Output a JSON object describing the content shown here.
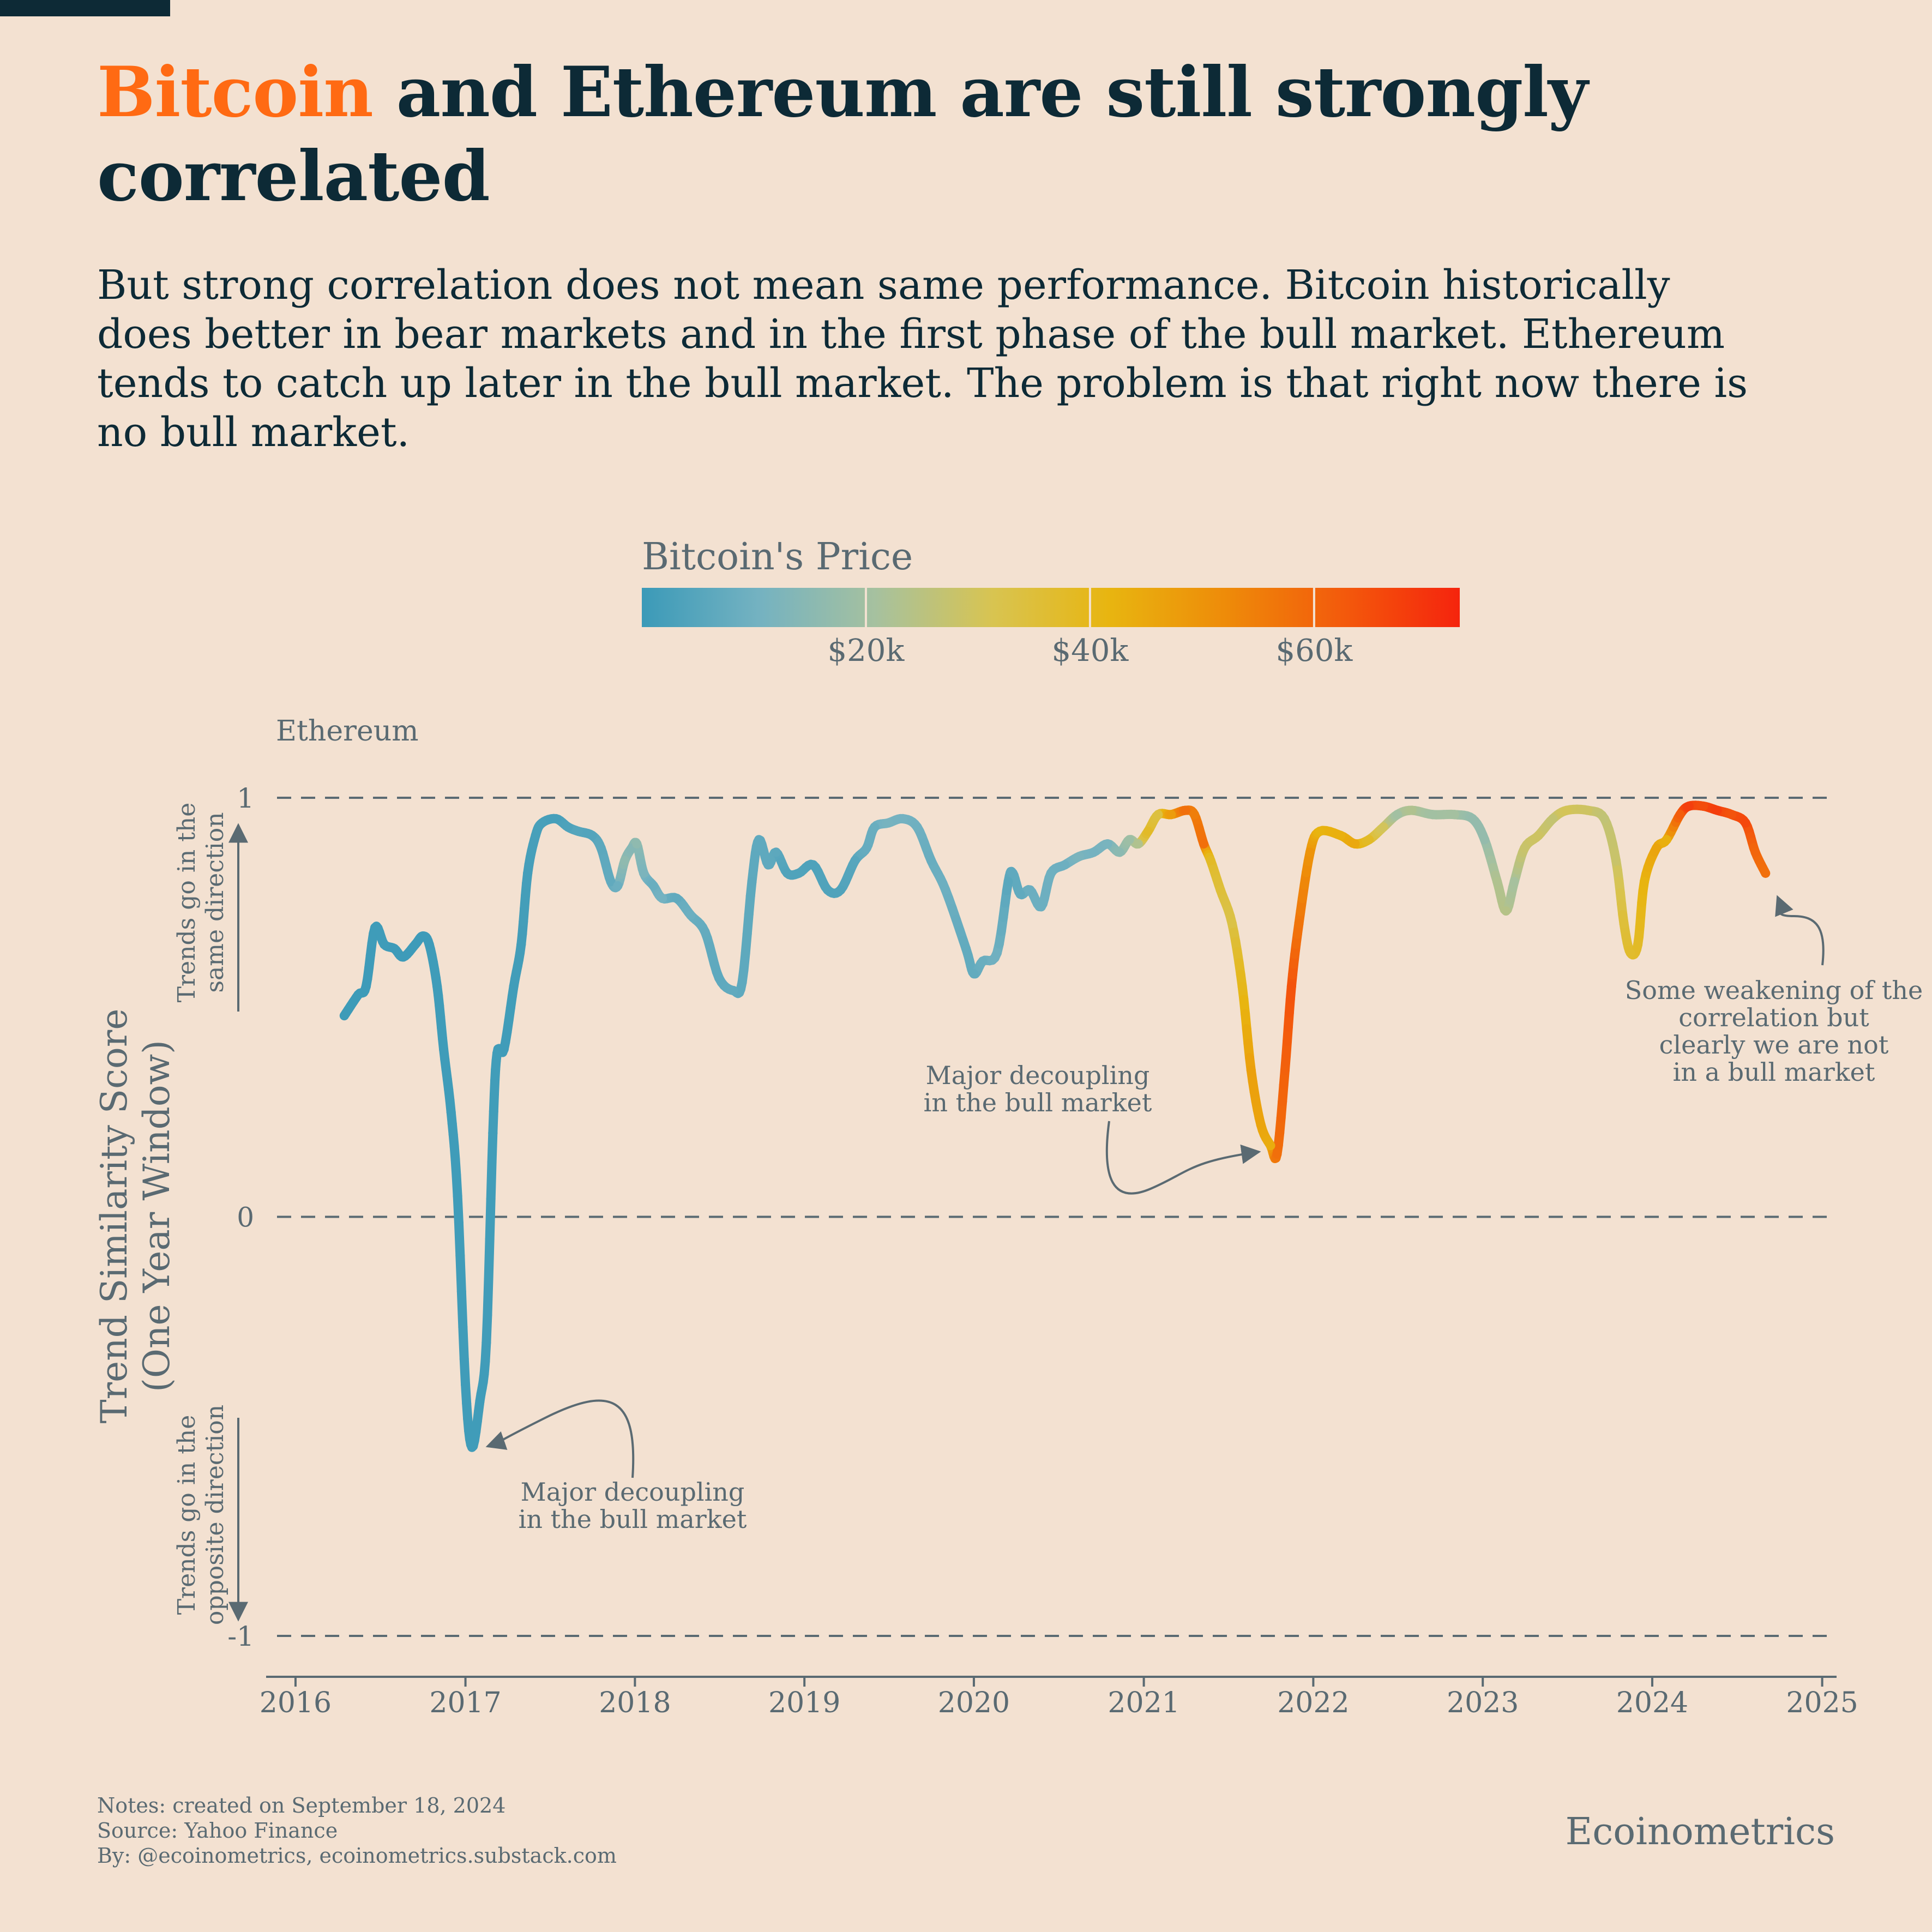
{
  "header": {
    "title_accent": "Bitcoin",
    "title_rest": " and Ethereum are still strongly correlated",
    "subtitle": "But strong correlation does not mean same performance. Bitcoin historically does better in bear markets and in the first phase of the bull market. Ethereum tends to catch up later in the bull market. The problem is that right now there is no bull market."
  },
  "colorbar": {
    "title": "Bitcoin's Price",
    "ticks": [
      {
        "value": 20000,
        "label": "$20k"
      },
      {
        "value": 40000,
        "label": "$40k"
      },
      {
        "value": 60000,
        "label": "$60k"
      }
    ],
    "range": [
      0,
      73000
    ],
    "colors": [
      "#3B9AB8",
      "#74B2C1",
      "#A6C19F",
      "#D8C451",
      "#E8B510",
      "#EE8B09",
      "#F35A0C",
      "#F5240D"
    ]
  },
  "chart_data": {
    "type": "line",
    "series_label": "Ethereum",
    "ylabel": "Trend Similarity Score (One Year Window)",
    "ylim": [
      -1,
      1
    ],
    "xlim": [
      "2015-11-01",
      "2025-02-01"
    ],
    "yticks": [
      {
        "value": 1,
        "label": "1"
      },
      {
        "value": 0,
        "label": "0"
      },
      {
        "value": -1,
        "label": "-1"
      }
    ],
    "xticks": [
      {
        "value": "2016-01-01",
        "label": "2016"
      },
      {
        "value": "2017-01-01",
        "label": "2017"
      },
      {
        "value": "2018-01-01",
        "label": "2018"
      },
      {
        "value": "2019-01-01",
        "label": "2019"
      },
      {
        "value": "2020-01-01",
        "label": "2020"
      },
      {
        "value": "2021-01-01",
        "label": "2021"
      },
      {
        "value": "2022-01-01",
        "label": "2022"
      },
      {
        "value": "2023-01-01",
        "label": "2023"
      },
      {
        "value": "2024-01-01",
        "label": "2024"
      },
      {
        "value": "2025-01-01",
        "label": "2025"
      }
    ],
    "grid": "dashed horizontal at y ticks",
    "axis_notes": {
      "up": "Trends go in the same direction",
      "down": "Trends go in the opposite direction"
    },
    "points": [
      {
        "x": "2016-04-15",
        "y": 0.48,
        "p": 420
      },
      {
        "x": "2016-05-15",
        "y": 0.53,
        "p": 450
      },
      {
        "x": "2016-06-01",
        "y": 0.55,
        "p": 580
      },
      {
        "x": "2016-06-20",
        "y": 0.69,
        "p": 700
      },
      {
        "x": "2016-07-10",
        "y": 0.65,
        "p": 660
      },
      {
        "x": "2016-08-01",
        "y": 0.64,
        "p": 600
      },
      {
        "x": "2016-08-20",
        "y": 0.62,
        "p": 580
      },
      {
        "x": "2016-09-15",
        "y": 0.65,
        "p": 610
      },
      {
        "x": "2016-10-01",
        "y": 0.67,
        "p": 615
      },
      {
        "x": "2016-10-15",
        "y": 0.65,
        "p": 640
      },
      {
        "x": "2016-11-01",
        "y": 0.55,
        "p": 730
      },
      {
        "x": "2016-11-15",
        "y": 0.4,
        "p": 720
      },
      {
        "x": "2016-12-01",
        "y": 0.25,
        "p": 750
      },
      {
        "x": "2016-12-15",
        "y": 0.05,
        "p": 780
      },
      {
        "x": "2017-01-01",
        "y": -0.4,
        "p": 970
      },
      {
        "x": "2017-01-15",
        "y": -0.55,
        "p": 830
      },
      {
        "x": "2017-02-01",
        "y": -0.44,
        "p": 970
      },
      {
        "x": "2017-02-15",
        "y": -0.3,
        "p": 1010
      },
      {
        "x": "2017-03-01",
        "y": 0.2,
        "p": 1200
      },
      {
        "x": "2017-03-10",
        "y": 0.39,
        "p": 1150
      },
      {
        "x": "2017-03-25",
        "y": 0.4,
        "p": 960
      },
      {
        "x": "2017-04-15",
        "y": 0.55,
        "p": 1180
      },
      {
        "x": "2017-05-01",
        "y": 0.65,
        "p": 1400
      },
      {
        "x": "2017-05-15",
        "y": 0.82,
        "p": 1800
      },
      {
        "x": "2017-06-01",
        "y": 0.91,
        "p": 2400
      },
      {
        "x": "2017-06-15",
        "y": 0.94,
        "p": 2500
      },
      {
        "x": "2017-07-15",
        "y": 0.95,
        "p": 2000
      },
      {
        "x": "2017-08-10",
        "y": 0.93,
        "p": 3400
      },
      {
        "x": "2017-09-01",
        "y": 0.92,
        "p": 4700
      },
      {
        "x": "2017-10-01",
        "y": 0.91,
        "p": 4400
      },
      {
        "x": "2017-10-20",
        "y": 0.88,
        "p": 6000
      },
      {
        "x": "2017-11-10",
        "y": 0.8,
        "p": 7000
      },
      {
        "x": "2017-11-25",
        "y": 0.79,
        "p": 9000
      },
      {
        "x": "2017-12-10",
        "y": 0.85,
        "p": 16000
      },
      {
        "x": "2017-12-25",
        "y": 0.88,
        "p": 14000
      },
      {
        "x": "2018-01-05",
        "y": 0.89,
        "p": 16000
      },
      {
        "x": "2018-01-20",
        "y": 0.82,
        "p": 12000
      },
      {
        "x": "2018-02-10",
        "y": 0.79,
        "p": 8500
      },
      {
        "x": "2018-03-01",
        "y": 0.76,
        "p": 10500
      },
      {
        "x": "2018-04-01",
        "y": 0.76,
        "p": 7000
      },
      {
        "x": "2018-05-01",
        "y": 0.72,
        "p": 9000
      },
      {
        "x": "2018-06-01",
        "y": 0.68,
        "p": 7500
      },
      {
        "x": "2018-07-01",
        "y": 0.57,
        "p": 6400
      },
      {
        "x": "2018-08-01",
        "y": 0.54,
        "p": 7000
      },
      {
        "x": "2018-08-20",
        "y": 0.56,
        "p": 6400
      },
      {
        "x": "2018-09-10",
        "y": 0.8,
        "p": 6300
      },
      {
        "x": "2018-09-25",
        "y": 0.9,
        "p": 6600
      },
      {
        "x": "2018-10-15",
        "y": 0.84,
        "p": 6500
      },
      {
        "x": "2018-11-01",
        "y": 0.87,
        "p": 6300
      },
      {
        "x": "2018-11-25",
        "y": 0.82,
        "p": 4000
      },
      {
        "x": "2018-12-20",
        "y": 0.82,
        "p": 3900
      },
      {
        "x": "2019-01-20",
        "y": 0.84,
        "p": 3600
      },
      {
        "x": "2019-02-20",
        "y": 0.78,
        "p": 3900
      },
      {
        "x": "2019-03-20",
        "y": 0.78,
        "p": 4000
      },
      {
        "x": "2019-04-20",
        "y": 0.85,
        "p": 5300
      },
      {
        "x": "2019-05-15",
        "y": 0.88,
        "p": 8000
      },
      {
        "x": "2019-06-01",
        "y": 0.93,
        "p": 8500
      },
      {
        "x": "2019-07-01",
        "y": 0.94,
        "p": 11000
      },
      {
        "x": "2019-08-01",
        "y": 0.95,
        "p": 10500
      },
      {
        "x": "2019-09-01",
        "y": 0.93,
        "p": 9600
      },
      {
        "x": "2019-10-01",
        "y": 0.85,
        "p": 8300
      },
      {
        "x": "2019-11-01",
        "y": 0.78,
        "p": 9200
      },
      {
        "x": "2019-12-15",
        "y": 0.64,
        "p": 7200
      },
      {
        "x": "2020-01-01",
        "y": 0.58,
        "p": 7200
      },
      {
        "x": "2020-01-20",
        "y": 0.61,
        "p": 8600
      },
      {
        "x": "2020-02-20",
        "y": 0.63,
        "p": 9700
      },
      {
        "x": "2020-03-15",
        "y": 0.8,
        "p": 5500
      },
      {
        "x": "2020-03-25",
        "y": 0.82,
        "p": 6700
      },
      {
        "x": "2020-04-10",
        "y": 0.77,
        "p": 6900
      },
      {
        "x": "2020-05-01",
        "y": 0.78,
        "p": 8800
      },
      {
        "x": "2020-05-25",
        "y": 0.74,
        "p": 9000
      },
      {
        "x": "2020-06-15",
        "y": 0.82,
        "p": 9400
      },
      {
        "x": "2020-07-15",
        "y": 0.84,
        "p": 9200
      },
      {
        "x": "2020-08-15",
        "y": 0.86,
        "p": 11800
      },
      {
        "x": "2020-09-15",
        "y": 0.87,
        "p": 10700
      },
      {
        "x": "2020-10-15",
        "y": 0.89,
        "p": 11500
      },
      {
        "x": "2020-11-10",
        "y": 0.87,
        "p": 15300
      },
      {
        "x": "2020-12-01",
        "y": 0.9,
        "p": 19000
      },
      {
        "x": "2020-12-20",
        "y": 0.89,
        "p": 23000
      },
      {
        "x": "2021-01-10",
        "y": 0.92,
        "p": 38000
      },
      {
        "x": "2021-02-01",
        "y": 0.96,
        "p": 34000
      },
      {
        "x": "2021-03-01",
        "y": 0.96,
        "p": 48000
      },
      {
        "x": "2021-04-01",
        "y": 0.97,
        "p": 58000
      },
      {
        "x": "2021-04-20",
        "y": 0.96,
        "p": 55000
      },
      {
        "x": "2021-05-10",
        "y": 0.89,
        "p": 58000
      },
      {
        "x": "2021-05-25",
        "y": 0.85,
        "p": 38000
      },
      {
        "x": "2021-06-15",
        "y": 0.78,
        "p": 35000
      },
      {
        "x": "2021-07-10",
        "y": 0.7,
        "p": 33000
      },
      {
        "x": "2021-08-01",
        "y": 0.55,
        "p": 40000
      },
      {
        "x": "2021-08-20",
        "y": 0.35,
        "p": 47000
      },
      {
        "x": "2021-09-10",
        "y": 0.22,
        "p": 46000
      },
      {
        "x": "2021-10-01",
        "y": 0.17,
        "p": 44000
      },
      {
        "x": "2021-10-15",
        "y": 0.15,
        "p": 58000
      },
      {
        "x": "2021-11-01",
        "y": 0.35,
        "p": 61000
      },
      {
        "x": "2021-11-15",
        "y": 0.55,
        "p": 64000
      },
      {
        "x": "2021-12-01",
        "y": 0.7,
        "p": 57000
      },
      {
        "x": "2021-12-25",
        "y": 0.87,
        "p": 50000
      },
      {
        "x": "2022-01-15",
        "y": 0.92,
        "p": 42000
      },
      {
        "x": "2022-03-01",
        "y": 0.91,
        "p": 43000
      },
      {
        "x": "2022-04-01",
        "y": 0.89,
        "p": 45000
      },
      {
        "x": "2022-05-01",
        "y": 0.9,
        "p": 38000
      },
      {
        "x": "2022-06-01",
        "y": 0.93,
        "p": 30000
      },
      {
        "x": "2022-07-01",
        "y": 0.96,
        "p": 20000
      },
      {
        "x": "2022-08-01",
        "y": 0.97,
        "p": 23000
      },
      {
        "x": "2022-09-15",
        "y": 0.96,
        "p": 20000
      },
      {
        "x": "2022-11-01",
        "y": 0.96,
        "p": 20500
      },
      {
        "x": "2022-12-10",
        "y": 0.95,
        "p": 17000
      },
      {
        "x": "2023-01-05",
        "y": 0.9,
        "p": 17000
      },
      {
        "x": "2023-02-01",
        "y": 0.8,
        "p": 23000
      },
      {
        "x": "2023-02-20",
        "y": 0.73,
        "p": 24000
      },
      {
        "x": "2023-03-10",
        "y": 0.8,
        "p": 21000
      },
      {
        "x": "2023-04-01",
        "y": 0.88,
        "p": 28000
      },
      {
        "x": "2023-05-01",
        "y": 0.91,
        "p": 29000
      },
      {
        "x": "2023-06-01",
        "y": 0.95,
        "p": 27000
      },
      {
        "x": "2023-07-01",
        "y": 0.97,
        "p": 30500
      },
      {
        "x": "2023-08-15",
        "y": 0.97,
        "p": 29000
      },
      {
        "x": "2023-09-20",
        "y": 0.95,
        "p": 26500
      },
      {
        "x": "2023-10-15",
        "y": 0.85,
        "p": 28000
      },
      {
        "x": "2023-11-01",
        "y": 0.7,
        "p": 35000
      },
      {
        "x": "2023-11-15",
        "y": 0.63,
        "p": 37000
      },
      {
        "x": "2023-12-01",
        "y": 0.65,
        "p": 38000
      },
      {
        "x": "2023-12-15",
        "y": 0.8,
        "p": 42000
      },
      {
        "x": "2024-01-10",
        "y": 0.88,
        "p": 46000
      },
      {
        "x": "2024-02-01",
        "y": 0.9,
        "p": 43000
      },
      {
        "x": "2024-03-01",
        "y": 0.96,
        "p": 62000
      },
      {
        "x": "2024-03-20",
        "y": 0.98,
        "p": 68000
      },
      {
        "x": "2024-04-20",
        "y": 0.98,
        "p": 65000
      },
      {
        "x": "2024-05-20",
        "y": 0.97,
        "p": 68000
      },
      {
        "x": "2024-06-20",
        "y": 0.96,
        "p": 64000
      },
      {
        "x": "2024-07-20",
        "y": 0.94,
        "p": 66000
      },
      {
        "x": "2024-08-10",
        "y": 0.87,
        "p": 60000
      },
      {
        "x": "2024-09-01",
        "y": 0.82,
        "p": 58000
      }
    ],
    "annotations": [
      {
        "text": "Major decoupling in the bull market",
        "lines": [
          "Major decoupling",
          "in the bull market"
        ],
        "target": {
          "x": "2017-02-01",
          "y": -0.54
        }
      },
      {
        "text": "Major decoupling in the bull market",
        "lines": [
          "Major decoupling",
          "in the bull market"
        ],
        "target": {
          "x": "2021-09-25",
          "y": 0.15
        }
      },
      {
        "text": "Some weakening of the correlation but clearly we are not in a bull market",
        "lines": [
          "Some weakening of the",
          "correlation but",
          "clearly we are not",
          "in a bull market"
        ],
        "target": {
          "x": "2024-09-01",
          "y": 0.8
        }
      }
    ]
  },
  "footer": {
    "notes": "Notes: created on September 18, 2024",
    "source": "Source: Yahoo Finance",
    "by": "By: @ecoinometrics, ecoinometrics.substack.com",
    "brand": "Ecoinometrics"
  }
}
